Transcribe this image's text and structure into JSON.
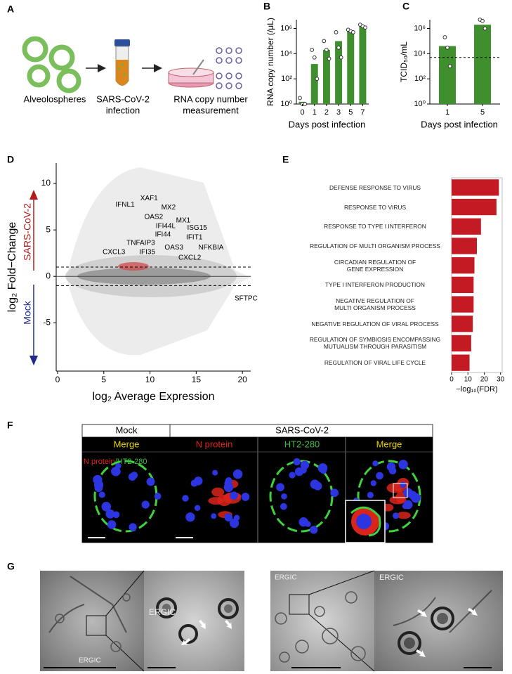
{
  "panel_labels": [
    "A",
    "B",
    "C",
    "D",
    "E",
    "F",
    "G"
  ],
  "diagram": {
    "steps": [
      [
        "Alveolospheres"
      ],
      [
        "SARS-CoV-2",
        "infection"
      ],
      [
        "RNA copy number",
        "measurement"
      ]
    ]
  },
  "chart_data": [
    {
      "type": "bar",
      "y_label": "RNA copy number (/μL)",
      "x_label": "Days post infection",
      "categories": [
        "0",
        "1",
        "2",
        "3",
        "5",
        "7"
      ],
      "values": [
        1.5,
        1500,
        20000,
        100000,
        600000,
        1500000
      ],
      "points": [
        [
          3,
          1,
          1
        ],
        [
          20000,
          5000,
          100
        ],
        [
          100000,
          20000,
          4000
        ],
        [
          500000,
          30000,
          5000
        ],
        [
          800000,
          600000,
          500000
        ],
        [
          2000000,
          1500000,
          1200000
        ]
      ],
      "color": "#3f8f2f",
      "log_scale": true,
      "ylim": [
        1,
        5000000
      ],
      "yticks": [
        {
          "value": 1,
          "label": "10⁰"
        },
        {
          "value": 100,
          "label": "10²"
        },
        {
          "value": 10000,
          "label": "10⁴"
        },
        {
          "value": 1000000,
          "label": "10⁶"
        }
      ]
    },
    {
      "type": "bar",
      "y_label": "TCID₅₀/mL",
      "x_label": "Days post infection",
      "categories": [
        "1",
        "5"
      ],
      "values": [
        40000,
        2000000
      ],
      "points": [
        [
          200000,
          30000,
          1000
        ],
        [
          5000000,
          4000000,
          1000000
        ]
      ],
      "hline": 5000,
      "color": "#3f8f2f",
      "log_scale": true,
      "ylim": [
        1,
        5000000
      ],
      "yticks": [
        {
          "value": 1,
          "label": "10⁰"
        },
        {
          "value": 100,
          "label": "10²"
        },
        {
          "value": 10000,
          "label": "10⁴"
        },
        {
          "value": 1000000,
          "label": "10⁶"
        }
      ]
    },
    {
      "type": "scatter",
      "y_label": "log₂ Fold−Change",
      "x_label": "log₂ Average Expression",
      "up_label": "SARS-CoV-2",
      "down_label": "Mock",
      "xlim": [
        -0.15,
        20.9
      ],
      "ylim": [
        -10.2,
        12.2
      ],
      "xticks": [
        0,
        5,
        10,
        15,
        20
      ],
      "yticks": [
        -5,
        0,
        5,
        10
      ],
      "hlines": [
        1,
        -1
      ],
      "annotations": [
        {
          "text": "XAF1",
          "x": 9.9,
          "y": 8.4
        },
        {
          "text": "IFNL1",
          "x": 7.3,
          "y": 7.7
        },
        {
          "text": "MX2",
          "x": 12.0,
          "y": 7.4
        },
        {
          "text": "OAS2",
          "x": 10.4,
          "y": 6.4
        },
        {
          "text": "MX1",
          "x": 13.6,
          "y": 6.0
        },
        {
          "text": "IFI44L",
          "x": 11.7,
          "y": 5.4
        },
        {
          "text": "ISG15",
          "x": 15.1,
          "y": 5.2
        },
        {
          "text": "IFI44",
          "x": 11.4,
          "y": 4.5
        },
        {
          "text": "IFIT1",
          "x": 14.8,
          "y": 4.2
        },
        {
          "text": "TNFAIP3",
          "x": 9.0,
          "y": 3.6
        },
        {
          "text": "OAS3",
          "x": 12.6,
          "y": 3.1
        },
        {
          "text": "NFKBIA",
          "x": 16.6,
          "y": 3.1
        },
        {
          "text": "CXCL3",
          "x": 6.1,
          "y": 2.6
        },
        {
          "text": "IFI35",
          "x": 9.7,
          "y": 2.6
        },
        {
          "text": "CXCL2",
          "x": 14.3,
          "y": 2.0
        },
        {
          "text": "SFTPC",
          "x": 20.4,
          "y": -2.4
        }
      ]
    },
    {
      "type": "hbar",
      "x_label": "−log₁₀(FDR)",
      "categories": [
        "DEFENSE RESPONSE TO VIRUS",
        "RESPONSE TO VIRUS",
        "RESPONSE TO TYPE I INTERFERON",
        "REGULATION OF MULTI ORGANISM PROCESS",
        "CIRCADIAN REGULATION OF\nGENE EXPRESSION",
        "TYPE I INTERFERON PRODUCTION",
        "NEGATIVE REGULATION OF\nMULTI ORGANISM PROCESS",
        "NEGATIVE REGULATION OF VIRAL PROCESS",
        "REGULATION OF SYMBIOSIS ENCOMPASSING\nMUTUALISM THROUGH PARASITISM",
        "REGULATION OF VIRAL LIFE CYCLE"
      ],
      "values": [
        29,
        27.5,
        18,
        15.5,
        14,
        13.5,
        13.5,
        13,
        12,
        11
      ],
      "color": "#c41a24",
      "xlim": [
        0,
        31
      ],
      "xticks": [
        0,
        10,
        20,
        30
      ]
    }
  ],
  "microscopy": {
    "group_headers": [
      "Mock",
      "SARS-CoV-2"
    ],
    "channels": [
      "Merge",
      "N protein",
      "HT2-280",
      "Merge"
    ],
    "overlay": [
      "N protein",
      "/HT2-280"
    ]
  },
  "em": {
    "labels": [
      "ERGIC",
      "ERGIC",
      "ERGIC",
      "ERGIC"
    ]
  }
}
